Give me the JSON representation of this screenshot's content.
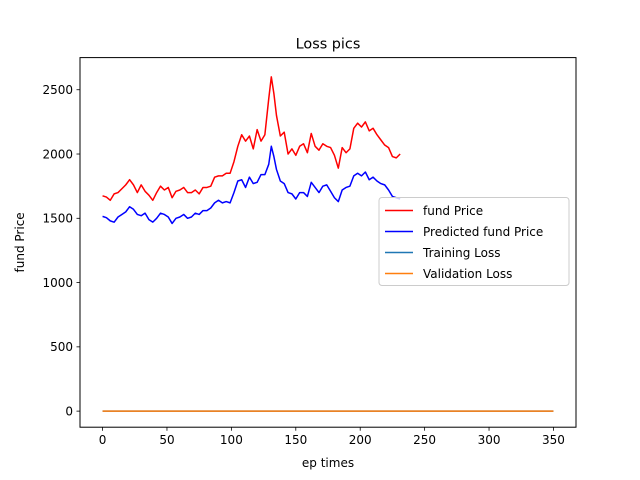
{
  "chart_data": {
    "type": "line",
    "title": "Loss pics",
    "xlabel": "ep times",
    "ylabel": "fund Price",
    "xlim": [
      -17.5,
      367.5
    ],
    "ylim": [
      -125,
      2750
    ],
    "xticks": [
      0,
      50,
      100,
      150,
      200,
      250,
      300,
      350
    ],
    "yticks": [
      0,
      500,
      1000,
      1500,
      2000,
      2500
    ],
    "grid": false,
    "legend_position": "center-right",
    "series": [
      {
        "name": "fund Price",
        "color": "#ff0000",
        "x": [
          0,
          3,
          6,
          9,
          12,
          15,
          18,
          21,
          24,
          27,
          30,
          33,
          36,
          39,
          42,
          45,
          48,
          51,
          54,
          57,
          60,
          63,
          66,
          69,
          72,
          75,
          78,
          81,
          84,
          87,
          90,
          93,
          96,
          99,
          102,
          105,
          108,
          111,
          114,
          117,
          120,
          123,
          126,
          129,
          131,
          133,
          135,
          138,
          141,
          144,
          147,
          150,
          153,
          156,
          159,
          162,
          165,
          168,
          171,
          174,
          177,
          180,
          183,
          186,
          189,
          192,
          195,
          198,
          201,
          204,
          207,
          210,
          213,
          216,
          219,
          222,
          225,
          228,
          231
        ],
        "values": [
          1675,
          1665,
          1640,
          1690,
          1700,
          1730,
          1760,
          1800,
          1760,
          1700,
          1760,
          1710,
          1680,
          1640,
          1700,
          1750,
          1720,
          1740,
          1660,
          1710,
          1720,
          1740,
          1700,
          1700,
          1720,
          1690,
          1740,
          1740,
          1750,
          1820,
          1830,
          1830,
          1850,
          1850,
          1940,
          2060,
          2150,
          2100,
          2140,
          2040,
          2190,
          2100,
          2150,
          2430,
          2600,
          2470,
          2300,
          2140,
          2170,
          2000,
          2040,
          1990,
          2060,
          2080,
          2010,
          2160,
          2060,
          2030,
          2080,
          2060,
          2050,
          1990,
          1890,
          2050,
          2010,
          2040,
          2200,
          2240,
          2210,
          2250,
          2180,
          2200,
          2150,
          2110,
          2070,
          2050,
          1980,
          1970,
          2000
        ]
      },
      {
        "name": "Predicted fund Price",
        "color": "#0000ff",
        "x": [
          0,
          3,
          6,
          9,
          12,
          15,
          18,
          21,
          24,
          27,
          30,
          33,
          36,
          39,
          42,
          45,
          48,
          51,
          54,
          57,
          60,
          63,
          66,
          69,
          72,
          75,
          78,
          81,
          84,
          87,
          90,
          93,
          96,
          99,
          102,
          105,
          108,
          111,
          114,
          117,
          120,
          123,
          126,
          129,
          131,
          133,
          135,
          138,
          141,
          144,
          147,
          150,
          153,
          156,
          159,
          162,
          165,
          168,
          171,
          174,
          177,
          180,
          183,
          186,
          189,
          192,
          195,
          198,
          201,
          204,
          207,
          210,
          213,
          216,
          219,
          222,
          225,
          228,
          231
        ],
        "values": [
          1515,
          1505,
          1480,
          1470,
          1510,
          1530,
          1550,
          1590,
          1570,
          1530,
          1520,
          1540,
          1490,
          1470,
          1500,
          1540,
          1530,
          1510,
          1460,
          1500,
          1510,
          1530,
          1500,
          1510,
          1540,
          1530,
          1560,
          1560,
          1580,
          1620,
          1640,
          1620,
          1630,
          1620,
          1700,
          1790,
          1800,
          1740,
          1820,
          1770,
          1780,
          1840,
          1840,
          1920,
          2060,
          1980,
          1880,
          1790,
          1770,
          1700,
          1690,
          1650,
          1700,
          1700,
          1670,
          1780,
          1740,
          1700,
          1750,
          1760,
          1710,
          1660,
          1630,
          1720,
          1740,
          1750,
          1830,
          1850,
          1830,
          1860,
          1800,
          1820,
          1790,
          1770,
          1760,
          1720,
          1670,
          1660,
          1650
        ]
      },
      {
        "name": "Training Loss",
        "color": "#1f77b4",
        "x": [
          0,
          350
        ],
        "values": [
          0,
          0
        ]
      },
      {
        "name": "Validation Loss",
        "color": "#ff7f0e",
        "x": [
          0,
          350
        ],
        "values": [
          0,
          0
        ]
      }
    ]
  }
}
